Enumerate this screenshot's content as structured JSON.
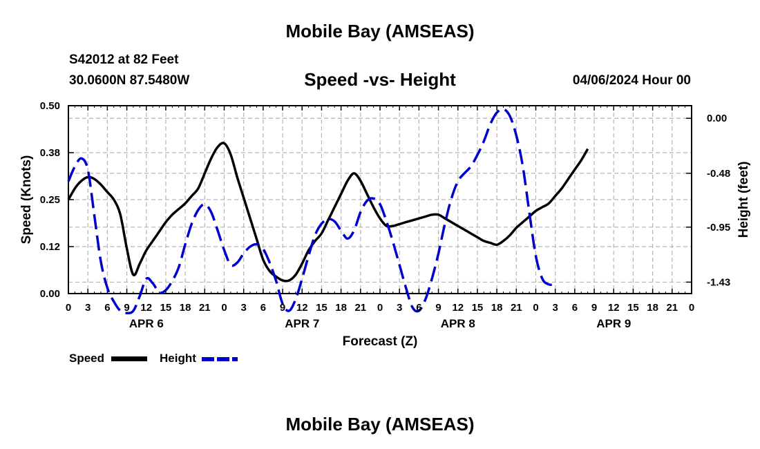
{
  "page": {
    "title": "Mobile Bay (AMSEAS)",
    "station": "S42012 at 82 Feet",
    "coords": "30.0600N  87.5480W",
    "chart_title": "Speed -vs- Height",
    "datetime": "04/06/2024 Hour 00",
    "bottom_title": "Mobile Bay (AMSEAS)"
  },
  "legend": {
    "speed": "Speed",
    "height": "Height"
  },
  "colors": {
    "speed": "#000000",
    "height": "#0000cc",
    "grid": "#b4b4b4"
  },
  "chart_data": {
    "type": "line",
    "title": "Speed -vs- Height",
    "xlabel": "Forecast (Z)",
    "ylabel": "Speed (Knots)",
    "y2label": "Height (feet)",
    "xlim": [
      0,
      96
    ],
    "ylim": [
      0,
      0.5
    ],
    "y2lim": [
      -1.53,
      0.11
    ],
    "x_ticks": [
      0,
      3,
      6,
      9,
      12,
      15,
      18,
      21,
      24,
      27,
      30,
      33,
      36,
      39,
      42,
      45,
      48,
      51,
      54,
      57,
      60,
      63,
      66,
      69,
      72,
      75,
      78,
      81,
      84,
      87,
      90,
      93,
      96
    ],
    "x_tick_labels": [
      "0",
      "3",
      "6",
      "9",
      "12",
      "15",
      "18",
      "21",
      "0",
      "3",
      "6",
      "9",
      "12",
      "15",
      "18",
      "21",
      "0",
      "3",
      "6",
      "9",
      "12",
      "15",
      "18",
      "21",
      "0",
      "3",
      "6",
      "9",
      "12",
      "15",
      "18",
      "21",
      "0"
    ],
    "day_labels": [
      {
        "label": "APR 6",
        "x": 12
      },
      {
        "label": "APR 7",
        "x": 36
      },
      {
        "label": "APR 8",
        "x": 60
      },
      {
        "label": "APR 9",
        "x": 84
      }
    ],
    "y_ticks": [
      0.0,
      0.125,
      0.25,
      0.375,
      0.5
    ],
    "y_tick_labels": [
      "0.00",
      "0.12",
      "0.25",
      "0.38",
      "0.50"
    ],
    "y2_ticks": [
      0.0,
      -0.48,
      -0.95,
      -1.43
    ],
    "y2_tick_labels": [
      "0.00",
      "-0.48",
      "-0.95",
      "-1.43"
    ],
    "series": [
      {
        "name": "Speed",
        "axis": "left",
        "points": [
          [
            0,
            0.25
          ],
          [
            1,
            0.28
          ],
          [
            2,
            0.3
          ],
          [
            3,
            0.31
          ],
          [
            4,
            0.305
          ],
          [
            5,
            0.29
          ],
          [
            6,
            0.27
          ],
          [
            7,
            0.25
          ],
          [
            8,
            0.21
          ],
          [
            9,
            0.12
          ],
          [
            10,
            0.05
          ],
          [
            11,
            0.08
          ],
          [
            12,
            0.115
          ],
          [
            13,
            0.14
          ],
          [
            14,
            0.165
          ],
          [
            15,
            0.19
          ],
          [
            16,
            0.21
          ],
          [
            17,
            0.225
          ],
          [
            18,
            0.24
          ],
          [
            19,
            0.26
          ],
          [
            20,
            0.28
          ],
          [
            21,
            0.32
          ],
          [
            22,
            0.36
          ],
          [
            23,
            0.39
          ],
          [
            24,
            0.4
          ],
          [
            25,
            0.37
          ],
          [
            26,
            0.31
          ],
          [
            27,
            0.255
          ],
          [
            28,
            0.2
          ],
          [
            29,
            0.145
          ],
          [
            30,
            0.09
          ],
          [
            31,
            0.06
          ],
          [
            32,
            0.045
          ],
          [
            33,
            0.035
          ],
          [
            34,
            0.035
          ],
          [
            35,
            0.05
          ],
          [
            36,
            0.08
          ],
          [
            37,
            0.115
          ],
          [
            38,
            0.14
          ],
          [
            39,
            0.16
          ],
          [
            40,
            0.195
          ],
          [
            41,
            0.23
          ],
          [
            42,
            0.265
          ],
          [
            43,
            0.3
          ],
          [
            44,
            0.32
          ],
          [
            45,
            0.3
          ],
          [
            46,
            0.265
          ],
          [
            47,
            0.23
          ],
          [
            48,
            0.2
          ],
          [
            49,
            0.18
          ],
          [
            50,
            0.18
          ],
          [
            51,
            0.185
          ],
          [
            52,
            0.19
          ],
          [
            53,
            0.195
          ],
          [
            54,
            0.2
          ],
          [
            55,
            0.205
          ],
          [
            56,
            0.21
          ],
          [
            57,
            0.21
          ],
          [
            58,
            0.2
          ],
          [
            59,
            0.19
          ],
          [
            60,
            0.18
          ],
          [
            61,
            0.17
          ],
          [
            62,
            0.16
          ],
          [
            63,
            0.15
          ],
          [
            64,
            0.14
          ],
          [
            65,
            0.135
          ],
          [
            66,
            0.13
          ],
          [
            67,
            0.14
          ],
          [
            68,
            0.155
          ],
          [
            69,
            0.175
          ],
          [
            70,
            0.19
          ],
          [
            71,
            0.205
          ],
          [
            72,
            0.22
          ],
          [
            73,
            0.23
          ],
          [
            74,
            0.24
          ],
          [
            75,
            0.26
          ],
          [
            76,
            0.28
          ],
          [
            77,
            0.305
          ],
          [
            78,
            0.33
          ],
          [
            79,
            0.355
          ],
          [
            80,
            0.385
          ]
        ]
      },
      {
        "name": "Height",
        "axis": "right",
        "points": [
          [
            0,
            -0.55
          ],
          [
            1,
            -0.42
          ],
          [
            2,
            -0.35
          ],
          [
            3,
            -0.45
          ],
          [
            4,
            -0.85
          ],
          [
            5,
            -1.25
          ],
          [
            6,
            -1.48
          ],
          [
            7,
            -1.6
          ],
          [
            8,
            -1.68
          ],
          [
            9,
            -1.7
          ],
          [
            10,
            -1.68
          ],
          [
            11,
            -1.55
          ],
          [
            12,
            -1.4
          ],
          [
            13,
            -1.44
          ],
          [
            14,
            -1.52
          ],
          [
            15,
            -1.5
          ],
          [
            16,
            -1.42
          ],
          [
            17,
            -1.3
          ],
          [
            18,
            -1.1
          ],
          [
            19,
            -0.92
          ],
          [
            20,
            -0.8
          ],
          [
            21,
            -0.75
          ],
          [
            22,
            -0.82
          ],
          [
            23,
            -0.98
          ],
          [
            24,
            -1.15
          ],
          [
            25,
            -1.28
          ],
          [
            26,
            -1.26
          ],
          [
            27,
            -1.18
          ],
          [
            28,
            -1.12
          ],
          [
            29,
            -1.1
          ],
          [
            30,
            -1.14
          ],
          [
            31,
            -1.26
          ],
          [
            32,
            -1.42
          ],
          [
            33,
            -1.62
          ],
          [
            34,
            -1.68
          ],
          [
            35,
            -1.58
          ],
          [
            36,
            -1.4
          ],
          [
            37,
            -1.2
          ],
          [
            38,
            -1.02
          ],
          [
            39,
            -0.92
          ],
          [
            40,
            -0.88
          ],
          [
            41,
            -0.9
          ],
          [
            42,
            -0.98
          ],
          [
            43,
            -1.05
          ],
          [
            44,
            -0.98
          ],
          [
            45,
            -0.82
          ],
          [
            46,
            -0.72
          ],
          [
            47,
            -0.7
          ],
          [
            48,
            -0.75
          ],
          [
            49,
            -0.9
          ],
          [
            50,
            -1.08
          ],
          [
            51,
            -1.28
          ],
          [
            52,
            -1.48
          ],
          [
            53,
            -1.65
          ],
          [
            54,
            -1.68
          ],
          [
            55,
            -1.58
          ],
          [
            56,
            -1.4
          ],
          [
            57,
            -1.18
          ],
          [
            58,
            -0.92
          ],
          [
            59,
            -0.7
          ],
          [
            60,
            -0.55
          ],
          [
            61,
            -0.48
          ],
          [
            62,
            -0.42
          ],
          [
            63,
            -0.32
          ],
          [
            64,
            -0.2
          ],
          [
            65,
            -0.05
          ],
          [
            66,
            0.05
          ],
          [
            67,
            0.08
          ],
          [
            68,
            0.02
          ],
          [
            69,
            -0.15
          ],
          [
            70,
            -0.42
          ],
          [
            71,
            -0.82
          ],
          [
            72,
            -1.2
          ],
          [
            73,
            -1.4
          ],
          [
            74,
            -1.45
          ],
          [
            75,
            -1.45
          ]
        ]
      }
    ]
  }
}
